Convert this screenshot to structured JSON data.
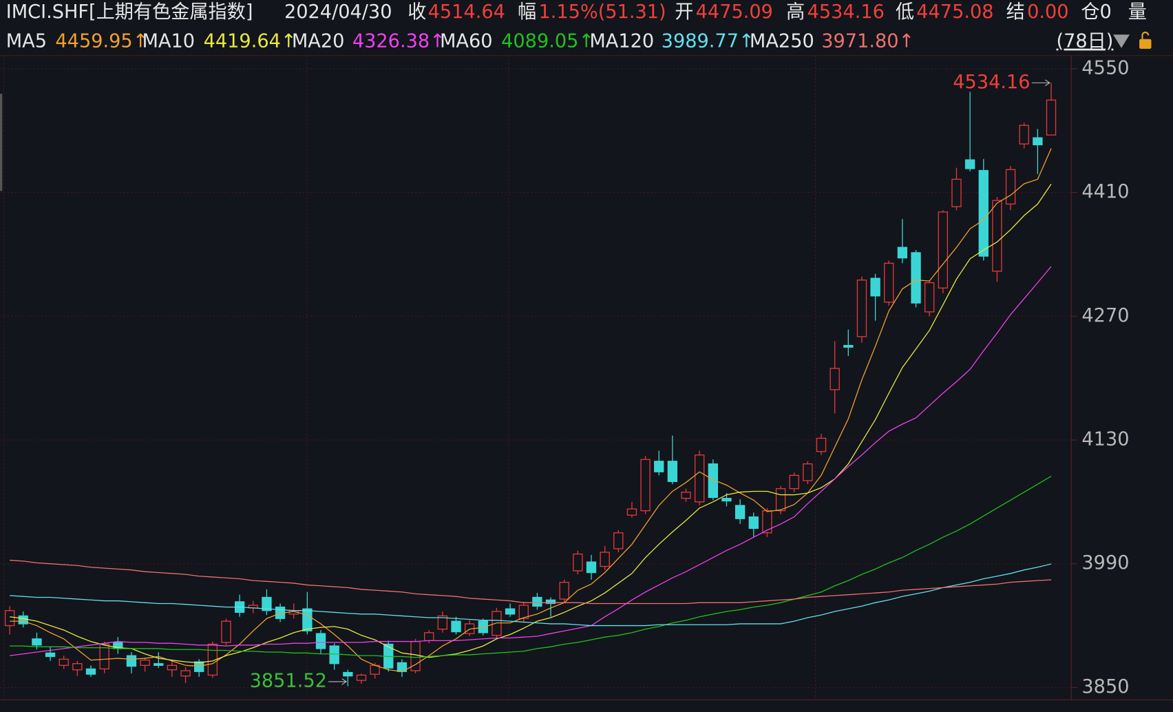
{
  "header": {
    "symbol": "IMCI.SHF[上期有色金属指数]",
    "date": "2024/04/30",
    "fields": [
      {
        "label": "收",
        "value": "4514.64"
      },
      {
        "label": "幅",
        "value": "1.15%(51.31)"
      },
      {
        "label": "开",
        "value": "4475.09"
      },
      {
        "label": "高",
        "value": "4534.16"
      },
      {
        "label": "低",
        "value": "4475.08"
      },
      {
        "label": "结",
        "value": "0.00"
      }
    ],
    "position": "仓0",
    "volume": "量",
    "period": "(78日)"
  },
  "chart_data": {
    "type": "candlestick",
    "up_color": "#e8393a",
    "down_color": "#3ad6d6",
    "open": [
      3920,
      3931,
      3905,
      3889,
      3875,
      3870,
      3871,
      3871,
      3901,
      3886,
      3875,
      3877,
      3870,
      3863,
      3879,
      3864,
      3901,
      3947,
      3940,
      3952,
      3941,
      3933,
      3939,
      3911,
      3897,
      3867,
      3858,
      3865,
      3899,
      3878,
      3869,
      3903,
      3916,
      3925,
      3911,
      3925,
      3909,
      3939,
      3928,
      3952,
      3949,
      3950,
      3982,
      3992,
      3987,
      4007,
      4045,
      4050,
      4106,
      4106,
      4064,
      4060,
      4103,
      4064,
      4056,
      4043,
      4025,
      4050,
      4075,
      4084,
      4117,
      4187,
      4237,
      4247,
      4313,
      4286,
      4348,
      4342,
      4275,
      4302,
      4394,
      4447,
      4435,
      4321,
      4397,
      4465,
      4472,
      4475.09
    ],
    "high": [
      3942,
      3936,
      3912,
      3896,
      3886,
      3880,
      3875,
      3902,
      3907,
      3890,
      3884,
      3890,
      3880,
      3873,
      3882,
      3902,
      3928,
      3955,
      3948,
      3961,
      3945,
      3945,
      3958,
      3915,
      3900,
      3870,
      3866,
      3878,
      3903,
      3882,
      3905,
      3915,
      3936,
      3930,
      3926,
      3928,
      3940,
      3945,
      3947,
      3957,
      3952,
      3972,
      4005,
      4000,
      4010,
      4028,
      4060,
      4112,
      4118,
      4135,
      4075,
      4118,
      4108,
      4070,
      4063,
      4048,
      4053,
      4078,
      4093,
      4106,
      4137,
      4242,
      4255,
      4315,
      4318,
      4333,
      4380,
      4345,
      4310,
      4390,
      4438,
      4524,
      4448,
      4405,
      4440,
      4489,
      4482,
      4534.16
    ],
    "low": [
      3910,
      3918,
      3893,
      3880,
      3871,
      3863,
      3862,
      3866,
      3888,
      3866,
      3868,
      3872,
      3862,
      3855,
      3862,
      3861,
      3898,
      3930,
      3934,
      3932,
      3924,
      3928,
      3910,
      3888,
      3870,
      3851.52,
      3854,
      3860,
      3868,
      3862,
      3866,
      3900,
      3912,
      3910,
      3908,
      3909,
      3905,
      3930,
      3924,
      3938,
      3930,
      3946,
      3978,
      3972,
      3983,
      4003,
      4042,
      4046,
      4090,
      4080,
      4060,
      4056,
      4062,
      4055,
      4035,
      4020,
      4020,
      4046,
      4071,
      4080,
      4113,
      4160,
      4225,
      4240,
      4265,
      4282,
      4330,
      4280,
      4270,
      4296,
      4390,
      4434,
      4333,
      4309,
      4390,
      4460,
      4431,
      4475.08
    ],
    "close": [
      3937,
      3922,
      3898,
      3885,
      3882,
      3877,
      3865,
      3899,
      3894,
      3874,
      3881,
      3875,
      3875,
      3869,
      3868,
      3899,
      3925,
      3935,
      3943,
      3937,
      3928,
      3937,
      3914,
      3894,
      3877,
      3863,
      3864,
      3875,
      3872,
      3868,
      3902,
      3912,
      3931,
      3913,
      3922,
      3912,
      3936,
      3933,
      3943,
      3942,
      3945,
      3969,
      4001,
      3980,
      4003,
      4025,
      4052,
      4108,
      4094,
      4083,
      4071,
      4113,
      4065,
      4061,
      4041,
      4030,
      4050,
      4075,
      4090,
      4103,
      4132,
      4211,
      4235,
      4311,
      4293,
      4330,
      4336,
      4285,
      4308,
      4388,
      4425,
      4437,
      4338,
      4401,
      4436,
      4486,
      4464,
      4514.64
    ],
    "series": [
      {
        "name": "MA5",
        "color": "#f0a030",
        "label": "4459.95↑",
        "values": [
          3925,
          3925,
          3920,
          3912,
          3905,
          3893,
          3881,
          3882,
          3883,
          3882,
          3883,
          3885,
          3880,
          3875,
          3874,
          3877,
          3887,
          3899,
          3914,
          3928,
          3934,
          3936,
          3932,
          3922,
          3910,
          3897,
          3882,
          3875,
          3870,
          3868,
          3876,
          3886,
          3897,
          3905,
          3916,
          3918,
          3923,
          3923,
          3929,
          3933,
          3940,
          3946,
          3960,
          3967,
          3980,
          3996,
          4012,
          4034,
          4056,
          4072,
          4082,
          4094,
          4085,
          4079,
          4070,
          4062,
          4049,
          4051,
          4057,
          4070,
          4090,
          4122,
          4154,
          4198,
          4236,
          4276,
          4301,
          4311,
          4310,
          4329,
          4348,
          4369,
          4379,
          4398,
          4407,
          4420,
          4425,
          4459.95
        ]
      },
      {
        "name": "MA10",
        "color": "#e8e840",
        "label": "4419.64↑",
        "values": [
          3930,
          3928,
          3925,
          3920,
          3915,
          3908,
          3902,
          3898,
          3895,
          3894,
          3888,
          3883,
          3881,
          3879,
          3878,
          3880,
          3886,
          3890,
          3895,
          3901,
          3906,
          3912,
          3916,
          3918,
          3919,
          3916,
          3909,
          3904,
          3896,
          3889,
          3887,
          3884,
          3886,
          3888,
          3892,
          3897,
          3905,
          3910,
          3917,
          3925,
          3929,
          3935,
          3942,
          3948,
          3957,
          3968,
          3979,
          3997,
          4012,
          4026,
          4039,
          4053,
          4060,
          4068,
          4071,
          4072,
          4072,
          4068,
          4068,
          4070,
          4076,
          4086,
          4103,
          4128,
          4153,
          4183,
          4212,
          4233,
          4254,
          4283,
          4312,
          4335,
          4345,
          4354,
          4368,
          4384,
          4397,
          4419.64
        ]
      },
      {
        "name": "MA20",
        "color": "#f040f0",
        "label": "4326.38↑",
        "values": [
          3886,
          3888,
          3890,
          3892,
          3894,
          3896,
          3898,
          3900,
          3902,
          3901,
          3901,
          3900,
          3900,
          3899,
          3898,
          3898,
          3897,
          3898,
          3898,
          3899,
          3899,
          3900,
          3900,
          3901,
          3901,
          3901,
          3901,
          3902,
          3902,
          3902,
          3902,
          3903,
          3903,
          3903,
          3904,
          3905,
          3906,
          3906,
          3907,
          3908,
          3911,
          3914,
          3917,
          3920,
          3930,
          3939,
          3949,
          3958,
          3966,
          3974,
          3981,
          3989,
          3997,
          4005,
          4012,
          4020,
          4028,
          4035,
          4043,
          4058,
          4072,
          4086,
          4100,
          4113,
          4127,
          4140,
          4148,
          4155,
          4169,
          4183,
          4196,
          4210,
          4231,
          4251,
          4272,
          4290,
          4308,
          4326.38
        ]
      },
      {
        "name": "MA60",
        "color": "#22c022",
        "label": "4089.05↑",
        "values": [
          3897,
          3897,
          3896,
          3896,
          3896,
          3895,
          3895,
          3895,
          3894,
          3894,
          3894,
          3894,
          3893,
          3893,
          3893,
          3892,
          3892,
          3891,
          3891,
          3890,
          3890,
          3889,
          3889,
          3888,
          3888,
          3887,
          3886,
          3886,
          3885,
          3885,
          3884,
          3885,
          3886,
          3887,
          3887,
          3888,
          3889,
          3890,
          3891,
          3894,
          3896,
          3899,
          3901,
          3904,
          3907,
          3909,
          3912,
          3916,
          3919,
          3923,
          3926,
          3930,
          3933,
          3936,
          3938,
          3941,
          3943,
          3946,
          3950,
          3954,
          3958,
          3965,
          3971,
          3978,
          3984,
          3991,
          3997,
          4005,
          4012,
          4020,
          4027,
          4035,
          4044,
          4053,
          4062,
          4071,
          4080,
          4089.05
        ]
      },
      {
        "name": "MA120",
        "color": "#60e0f0",
        "label": "3989.77↑",
        "values": [
          3954,
          3953,
          3952,
          3952,
          3951,
          3950,
          3949,
          3948,
          3948,
          3947,
          3946,
          3945,
          3945,
          3944,
          3943,
          3942,
          3941,
          3941,
          3940,
          3939,
          3938,
          3937,
          3937,
          3936,
          3935,
          3934,
          3933,
          3933,
          3932,
          3931,
          3930,
          3929,
          3929,
          3928,
          3927,
          3926,
          3926,
          3925,
          3924,
          3923,
          3922,
          3922,
          3921,
          3920,
          3920,
          3920,
          3920,
          3920,
          3921,
          3921,
          3921,
          3921,
          3921,
          3921,
          3922,
          3922,
          3922,
          3922,
          3925,
          3929,
          3932,
          3936,
          3939,
          3942,
          3946,
          3949,
          3953,
          3956,
          3959,
          3963,
          3966,
          3969,
          3973,
          3976,
          3979,
          3983,
          3986,
          3989.77
        ]
      },
      {
        "name": "MA250",
        "color": "#f07070",
        "label": "3971.80↑",
        "values": [
          3994,
          3993,
          3991,
          3990,
          3989,
          3988,
          3986,
          3985,
          3984,
          3983,
          3981,
          3980,
          3979,
          3978,
          3976,
          3975,
          3974,
          3973,
          3971,
          3970,
          3969,
          3968,
          3966,
          3965,
          3964,
          3963,
          3961,
          3960,
          3959,
          3958,
          3956,
          3955,
          3954,
          3953,
          3951,
          3950,
          3949,
          3948,
          3946,
          3946,
          3946,
          3946,
          3946,
          3945,
          3945,
          3945,
          3945,
          3945,
          3945,
          3945,
          3945,
          3946,
          3946,
          3946,
          3946,
          3947,
          3948,
          3949,
          3950,
          3952,
          3953,
          3954,
          3955,
          3956,
          3957,
          3958,
          3960,
          3961,
          3962,
          3963,
          3964,
          3965,
          3966,
          3967,
          3969,
          3970,
          3971,
          3971.8
        ]
      }
    ],
    "annotations": [
      {
        "text": "4534.16",
        "value": 4534.16,
        "color": "#f0403c"
      },
      {
        "text": "3851.52",
        "value": 3851.52,
        "color": "#3ac03a"
      }
    ],
    "ylim": [
      3836,
      4565
    ],
    "yticks": [
      3850,
      3990,
      4130,
      4270,
      4410,
      4550
    ],
    "grid": true
  }
}
